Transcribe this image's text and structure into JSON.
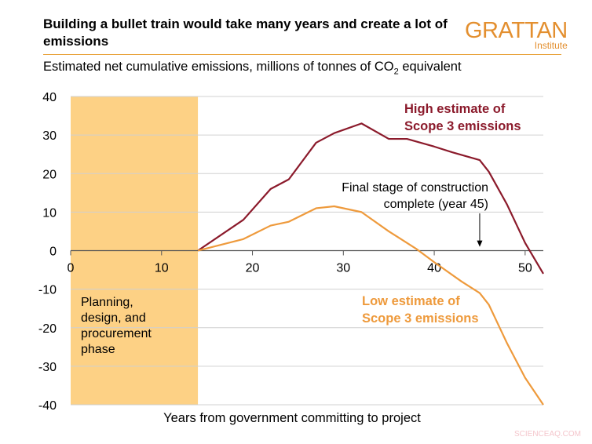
{
  "title": "Building a bullet train would take many years and create a lot of emissions",
  "logo": {
    "name": "GRATTAN",
    "sub": "Institute",
    "color": "#e38f2f"
  },
  "subtitle": {
    "pre": "Estimated net cumulative emissions, millions of tonnes of CO",
    "sub": "2",
    "post": " equivalent"
  },
  "watermark": "SCIENCEAQ.COM",
  "chart_data": {
    "type": "line",
    "xlabel": "Years from government committing to project",
    "ylabel": "",
    "xlim": [
      0,
      52
    ],
    "ylim": [
      -40,
      40
    ],
    "xticks": [
      0,
      10,
      20,
      30,
      40,
      50
    ],
    "yticks": [
      40,
      30,
      20,
      10,
      0,
      -10,
      -20,
      -30,
      -40
    ],
    "grid": "horizontal",
    "shaded_region": {
      "x": [
        0,
        14
      ],
      "label": "Planning, design, and procurement phase",
      "color": "#fdd185"
    },
    "series": [
      {
        "name": "High estimate of Scope 3 emissions",
        "color": "#8b1a2b",
        "x": [
          14,
          19,
          22,
          24,
          27,
          29,
          32,
          35,
          37,
          40,
          42,
          45,
          46,
          48,
          50,
          52
        ],
        "y": [
          0,
          8,
          16,
          18.5,
          28,
          30.5,
          33,
          29,
          29,
          27,
          25.5,
          23.5,
          20.5,
          12,
          2,
          -6
        ]
      },
      {
        "name": "Low estimate of Scope 3 emissions",
        "color": "#ee9a3c",
        "x": [
          14,
          19,
          22,
          24,
          27,
          29,
          32,
          35,
          38,
          40,
          43,
          45,
          46,
          48,
          50,
          52
        ],
        "y": [
          0,
          3,
          6.5,
          7.5,
          11,
          11.5,
          10,
          5,
          0.5,
          -3,
          -8,
          -11,
          -14,
          -24,
          -33,
          -40
        ]
      }
    ],
    "annotations": [
      {
        "text": [
          "Final stage of construction",
          "complete (year 45)"
        ],
        "x": 45,
        "arrow_to_y": 1
      }
    ]
  }
}
